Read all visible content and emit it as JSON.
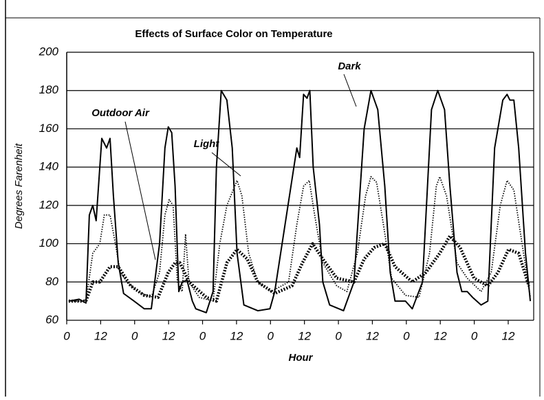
{
  "chart_data": {
    "type": "line",
    "title": "Effects of Surface Color on Temperature",
    "xlabel": "Hour",
    "ylabel": "Degrees Farenheit",
    "xlim": [
      0,
      165
    ],
    "xticks": [
      0,
      12,
      {
        "value": 24,
        "label": "0"
      },
      {
        "value": 36,
        "label": "12"
      },
      {
        "value": 48,
        "label": "0"
      },
      {
        "value": 60,
        "label": "12"
      },
      {
        "value": 72,
        "label": "0"
      },
      {
        "value": 84,
        "label": "12"
      },
      {
        "value": 96,
        "label": "0"
      },
      {
        "value": 108,
        "label": "12"
      },
      {
        "value": 120,
        "label": "0"
      },
      {
        "value": 132,
        "label": "12"
      },
      {
        "value": 144,
        "label": "0"
      },
      {
        "value": 156,
        "label": "12"
      }
    ],
    "ylim": [
      60,
      200
    ],
    "yticks": [
      60,
      80,
      100,
      120,
      140,
      160,
      180,
      200
    ],
    "grid": true,
    "series": [
      {
        "name": "Dark",
        "color": "#000000",
        "style": "solid",
        "x": [
          0.7,
          4.4,
          6.8,
          8,
          9.2,
          10.4,
          12.4,
          14.1,
          15.3,
          16.5,
          18.2,
          20.1,
          23.8,
          27.4,
          29.9,
          32.8,
          34.7,
          35.9,
          37.1,
          38.3,
          39.6,
          40.8,
          42.5,
          44.4,
          45.6,
          49.3,
          51.7,
          52.9,
          54.6,
          56.6,
          58.5,
          60.2,
          62.6,
          67.5,
          71.8,
          73.5,
          81.3,
          82.3,
          83.7,
          84.9,
          85.9,
          87.1,
          89.3,
          90.5,
          92.9,
          97.8,
          101.5,
          105.1,
          107.5,
          109.9,
          112.4,
          114.3,
          116,
          119.7,
          122.1,
          125.7,
          128.9,
          131.1,
          133.5,
          135.4,
          137.9,
          139.6,
          141.5,
          143.4,
          146.4,
          148.8,
          151.2,
          154.1,
          155.6,
          156.6,
          158,
          159.7,
          162.1,
          163.8
        ],
        "values": [
          70,
          71,
          69,
          115,
          120,
          112,
          155,
          150,
          155,
          125,
          90,
          74,
          70,
          66,
          66,
          100,
          150,
          161,
          158,
          130,
          75,
          80,
          81,
          70,
          66,
          64,
          75,
          140,
          180,
          175,
          150,
          95,
          68,
          65,
          66,
          75,
          150,
          145,
          178,
          176,
          180,
          140,
          110,
          80,
          68,
          65,
          80,
          160,
          180,
          170,
          130,
          85,
          70,
          70,
          66,
          80,
          170,
          180,
          170,
          130,
          85,
          75,
          75,
          72,
          68,
          70,
          150,
          175,
          178,
          175,
          175,
          150,
          95,
          70
        ]
      },
      {
        "name": "Light",
        "color": "#000000",
        "style": "dotted",
        "x": [
          0.7,
          6.8,
          9.2,
          11.7,
          13.3,
          15.3,
          17.2,
          18.9,
          21.4,
          25,
          29.9,
          32.8,
          34.7,
          36.2,
          37.6,
          39.1,
          40.8,
          42,
          43.2,
          46.8,
          51.7,
          54.1,
          56.6,
          60.2,
          61.9,
          64.3,
          67.5,
          72.3,
          78.4,
          81.3,
          83.7,
          85.7,
          87.6,
          90.5,
          95.4,
          99,
          102.7,
          105.6,
          107.5,
          109.5,
          111.9,
          114.8,
          119.7,
          124.5,
          128.2,
          130.6,
          131.8,
          134.2,
          137.9,
          141.5,
          146.4,
          150,
          153.2,
          155.6,
          158,
          160.9,
          163.8
        ],
        "values": [
          70,
          70,
          95,
          100,
          115,
          115,
          100,
          85,
          80,
          75,
          72,
          85,
          115,
          123,
          120,
          80,
          75,
          105,
          80,
          72,
          70,
          100,
          120,
          133,
          125,
          95,
          80,
          75,
          80,
          110,
          130,
          133,
          115,
          90,
          78,
          75,
          95,
          125,
          135,
          132,
          110,
          82,
          73,
          72,
          95,
          130,
          135,
          125,
          90,
          82,
          75,
          85,
          120,
          133,
          128,
          100,
          72
        ]
      },
      {
        "name": "Outdoor Air",
        "color": "#000000",
        "style": "heavy-dotted",
        "x": [
          0.7,
          6.8,
          9.2,
          11.7,
          15.3,
          18.2,
          22.6,
          27.4,
          32.3,
          35.9,
          38.3,
          40,
          43.2,
          49.3,
          52.9,
          56.6,
          60.2,
          63.8,
          67.5,
          73.5,
          79.6,
          83.3,
          86.9,
          90.5,
          95.4,
          101.5,
          105.1,
          108.7,
          112.4,
          116,
          122.1,
          126.9,
          131.8,
          135.4,
          139,
          143.9,
          148.8,
          152.4,
          156.1,
          159.7,
          163.3
        ],
        "values": [
          70,
          70,
          80,
          80,
          88,
          88,
          78,
          73,
          72,
          85,
          90,
          90,
          80,
          72,
          70,
          90,
          97,
          92,
          80,
          74,
          78,
          90,
          100,
          92,
          82,
          80,
          92,
          98,
          100,
          88,
          80,
          85,
          95,
          104,
          98,
          82,
          78,
          85,
          97,
          95,
          78
        ]
      }
    ]
  }
}
